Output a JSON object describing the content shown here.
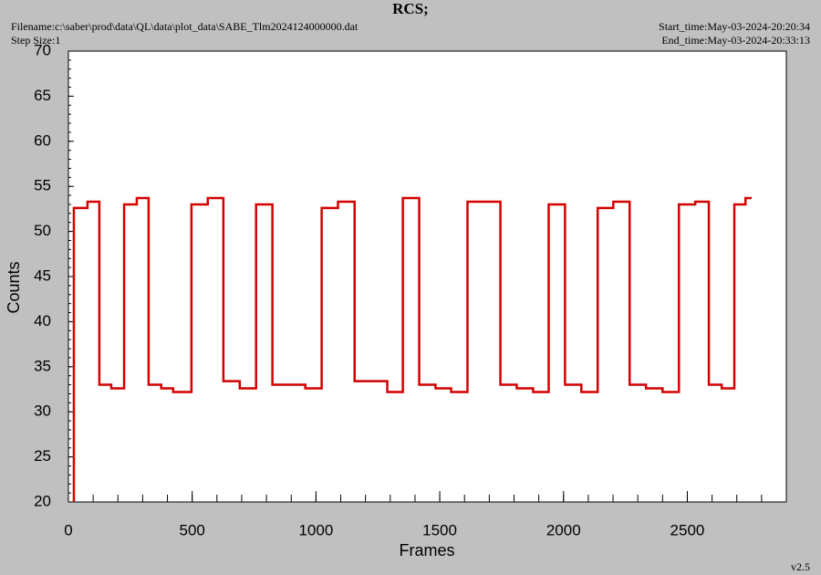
{
  "chart_data": {
    "type": "line",
    "step": "post",
    "title": "RCS;",
    "filename": "Filename:c:\\saber\\prod\\data\\QL\\data\\plot_data\\SABE_Tlm2024124000000.dat",
    "step_size": "Step Size:1",
    "start_time": "Start_time:May-03-2024-20:20:34",
    "end_time": "End_time:May-03-2024-20:33:13",
    "version": "v2.5",
    "xlabel": "Frames",
    "ylabel": "Counts",
    "xlim": [
      0,
      2900
    ],
    "ylim": [
      20,
      70
    ],
    "xticks": [
      0,
      500,
      1000,
      1500,
      2000,
      2500
    ],
    "yticks": [
      20,
      25,
      30,
      35,
      40,
      45,
      50,
      55,
      60,
      65,
      70
    ],
    "minor_xstep": 100,
    "minor_ystep": 1,
    "series": [
      {
        "color": "#d40000",
        "x": [
          22,
          22,
          77,
          125,
          173,
          225,
          276,
          324,
          375,
          423,
          497,
          563,
          626,
          692,
          758,
          824,
          957,
          1023,
          1089,
          1156,
          1288,
          1351,
          1417,
          1483,
          1546,
          1612,
          1745,
          1811,
          1877,
          1940,
          2006,
          2072,
          2138,
          2201,
          2267,
          2333,
          2400,
          2466,
          2532,
          2587,
          2639,
          2690,
          2735,
          2760
        ],
        "values": [
          20,
          52.6,
          53.3,
          33.0,
          32.6,
          53.0,
          53.7,
          33.0,
          32.6,
          32.2,
          53.0,
          53.7,
          33.4,
          32.6,
          53.0,
          33.0,
          32.6,
          52.6,
          53.3,
          33.4,
          32.2,
          53.7,
          33.0,
          32.6,
          32.2,
          53.3,
          33.0,
          32.6,
          32.2,
          53.0,
          33.0,
          32.2,
          52.6,
          53.3,
          33.0,
          32.6,
          32.2,
          53.0,
          53.3,
          33.0,
          32.6,
          53.0,
          53.7,
          53.7
        ]
      }
    ]
  }
}
